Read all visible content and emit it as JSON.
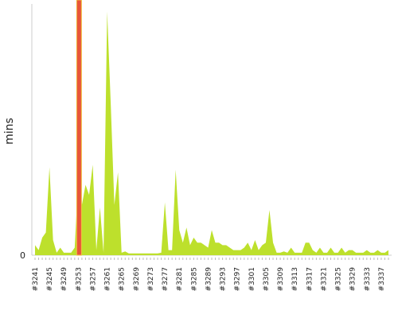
{
  "chart_data": {
    "type": "area",
    "y_label": "mins",
    "color": "#bde02c",
    "highlight_index": 12,
    "highlight_color": "#e8553a",
    "ylim": [
      0,
      100
    ],
    "yticks": [
      0
    ],
    "categories": [
      "#3241",
      null,
      null,
      null,
      "#3245",
      null,
      null,
      null,
      "#3249",
      null,
      null,
      null,
      "#3253",
      null,
      null,
      null,
      "#3257",
      null,
      null,
      null,
      "#3261",
      null,
      null,
      null,
      "#3265",
      null,
      null,
      null,
      "#3269",
      null,
      null,
      null,
      "#3273",
      null,
      null,
      null,
      "#3277",
      null,
      null,
      null,
      "#3281",
      null,
      null,
      null,
      "#3285",
      null,
      null,
      null,
      "#3289",
      null,
      null,
      null,
      "#3293",
      null,
      null,
      null,
      "#3297",
      null,
      null,
      null,
      "#3301",
      null,
      null,
      null,
      "#3305",
      null,
      null,
      null,
      "#3309",
      null,
      null,
      null,
      "#3313",
      null,
      null,
      null,
      "#3317",
      null,
      null,
      null,
      "#3321",
      null,
      null,
      null,
      "#3325",
      null,
      null,
      null,
      "#3329",
      null,
      null,
      null,
      "#3333",
      null,
      null,
      null,
      "#3337",
      null,
      null
    ],
    "values": [
      4,
      2,
      7,
      9,
      35,
      6,
      1,
      3,
      1,
      1,
      1,
      3,
      30,
      20,
      28,
      24,
      36,
      2,
      19,
      1,
      97,
      60,
      20,
      33,
      1,
      1.5,
      0.7,
      0.7,
      0.7,
      0.7,
      0.7,
      0.7,
      0.7,
      0.7,
      0.7,
      1,
      21,
      2,
      2,
      34,
      10,
      5,
      11,
      4,
      7,
      5,
      5,
      4,
      3,
      10,
      5,
      5,
      4,
      4,
      3,
      2,
      2,
      2,
      3,
      5,
      2,
      6,
      2,
      4,
      5,
      18,
      5,
      1,
      1,
      1.5,
      1,
      3,
      1,
      1,
      1,
      5,
      5,
      2,
      1,
      3,
      1,
      1,
      3,
      1,
      1,
      3,
      1,
      2,
      2,
      1,
      1,
      1,
      2,
      1,
      1,
      2,
      1,
      1,
      2
    ]
  }
}
